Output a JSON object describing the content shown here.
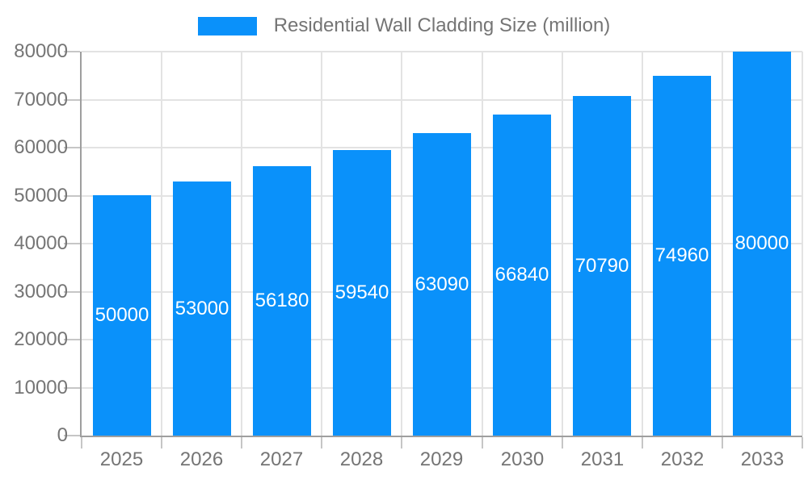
{
  "chart_data": {
    "type": "bar",
    "title": "Residential Wall Cladding Size (million)",
    "legend_position": "top",
    "categories": [
      "2025",
      "2026",
      "2027",
      "2028",
      "2029",
      "2030",
      "2031",
      "2032",
      "2033"
    ],
    "series": [
      {
        "name": "Residential Wall Cladding Size (million)",
        "values": [
          50000,
          53000,
          56180,
          59540,
          63090,
          66840,
          70790,
          74960,
          80000
        ]
      }
    ],
    "xlabel": "",
    "ylabel": "",
    "ylim": [
      0,
      80000
    ],
    "ytick_step": 10000,
    "yticks": [
      0,
      10000,
      20000,
      30000,
      40000,
      50000,
      60000,
      70000,
      80000
    ],
    "grid": true,
    "bar_labels_visible": true
  },
  "colors": {
    "bar": "#0a91fa",
    "bar_label": "#ffffff",
    "axis_text": "#757575",
    "grid_line": "#e3e3e3",
    "axis_line": "#9e9e9e",
    "tick_mark": "#c6c6c6",
    "background": "#ffffff"
  }
}
